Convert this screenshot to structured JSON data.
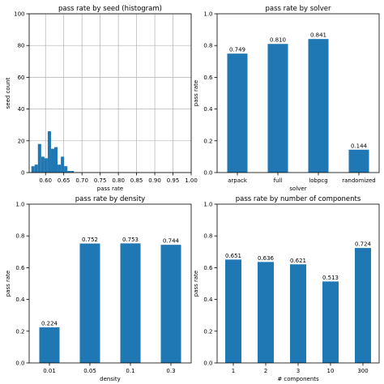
{
  "chart_data": [
    {
      "type": "bar",
      "title": "pass rate by seed (histogram)",
      "xlabel": "pass rate",
      "ylabel": "seed count",
      "xlim": [
        0.555,
        1.0
      ],
      "ylim": [
        0,
        100
      ],
      "xticks": [
        "0.60",
        "0.65",
        "0.70",
        "0.75",
        "0.80",
        "0.85",
        "0.90",
        "0.95",
        "1.00"
      ],
      "yticks": [
        "0",
        "20",
        "40",
        "60",
        "80",
        "100"
      ],
      "grid": true,
      "bins": [
        {
          "x0": 0.561,
          "x1": 0.57,
          "count": 4
        },
        {
          "x0": 0.57,
          "x1": 0.579,
          "count": 5
        },
        {
          "x0": 0.579,
          "x1": 0.588,
          "count": 18
        },
        {
          "x0": 0.588,
          "x1": 0.597,
          "count": 10
        },
        {
          "x0": 0.597,
          "x1": 0.606,
          "count": 9
        },
        {
          "x0": 0.606,
          "x1": 0.615,
          "count": 26
        },
        {
          "x0": 0.615,
          "x1": 0.624,
          "count": 15
        },
        {
          "x0": 0.624,
          "x1": 0.633,
          "count": 16
        },
        {
          "x0": 0.633,
          "x1": 0.642,
          "count": 5
        },
        {
          "x0": 0.642,
          "x1": 0.651,
          "count": 10
        },
        {
          "x0": 0.651,
          "x1": 0.66,
          "count": 4
        },
        {
          "x0": 0.66,
          "x1": 0.669,
          "count": 1
        },
        {
          "x0": 0.669,
          "x1": 0.678,
          "count": 1
        }
      ]
    },
    {
      "type": "bar",
      "title": "pass rate by solver",
      "xlabel": "solver",
      "ylabel": "pass rate",
      "ylim": [
        0,
        1
      ],
      "yticks": [
        "0.0",
        "0.2",
        "0.4",
        "0.6",
        "0.8",
        "1.0"
      ],
      "categories": [
        "arpack",
        "full",
        "lobpcg",
        "randomized"
      ],
      "values": [
        0.749,
        0.81,
        0.841,
        0.144
      ],
      "labels": [
        "0.749",
        "0.810",
        "0.841",
        "0.144"
      ]
    },
    {
      "type": "bar",
      "title": "pass rate by density",
      "xlabel": "density",
      "ylabel": "pass rate",
      "ylim": [
        0,
        1
      ],
      "yticks": [
        "0.0",
        "0.2",
        "0.4",
        "0.6",
        "0.8",
        "1.0"
      ],
      "categories": [
        "0.01",
        "0.05",
        "0.1",
        "0.3"
      ],
      "values": [
        0.224,
        0.752,
        0.753,
        0.744
      ],
      "labels": [
        "0.224",
        "0.752",
        "0.753",
        "0.744"
      ]
    },
    {
      "type": "bar",
      "title": "pass rate by number of components",
      "xlabel": "# components",
      "ylabel": "pass rate",
      "ylim": [
        0,
        1
      ],
      "yticks": [
        "0.0",
        "0.2",
        "0.4",
        "0.6",
        "0.8",
        "1.0"
      ],
      "categories": [
        "1",
        "2",
        "3",
        "10",
        "300"
      ],
      "values": [
        0.651,
        0.636,
        0.621,
        0.513,
        0.724
      ],
      "labels": [
        "0.651",
        "0.636",
        "0.621",
        "0.513",
        "0.724"
      ]
    }
  ],
  "colors": {
    "bar": "#1f77b4",
    "grid": "#b0b0b0",
    "axis": "#000000"
  }
}
